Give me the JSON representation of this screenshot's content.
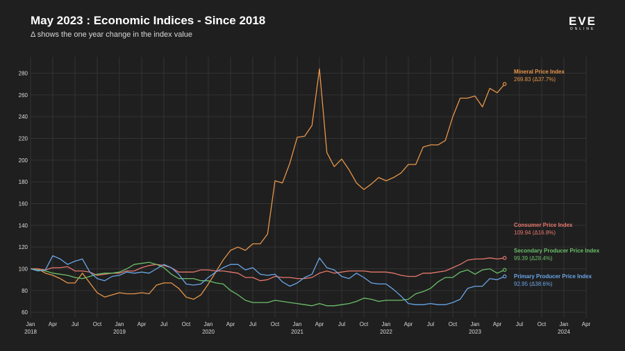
{
  "header": {
    "title": "May 2023 : Economic Indices - Since 2018",
    "subtitle": "Δ shows the one year change in the index value",
    "logo_text": "EVE",
    "logo_subtext": "ONLINE"
  },
  "chart_data": {
    "type": "line",
    "title": "May 2023 : Economic Indices - Since 2018",
    "subtitle": "Δ shows the one year change in the index value",
    "xlabel": "",
    "ylabel": "",
    "x_start": "Jan 2018",
    "x_end": "Apr 2024",
    "ylim": [
      55,
      295
    ],
    "grid": true,
    "legend": "inline-right",
    "y_ticks": [
      60,
      80,
      100,
      120,
      140,
      160,
      180,
      200,
      220,
      240,
      260,
      280
    ],
    "x_ticks": [
      {
        "month": "Jan",
        "year": "2018"
      },
      {
        "month": "Apr",
        "year": ""
      },
      {
        "month": "Jul",
        "year": ""
      },
      {
        "month": "Oct",
        "year": ""
      },
      {
        "month": "Jan",
        "year": "2019"
      },
      {
        "month": "Apr",
        "year": ""
      },
      {
        "month": "Jul",
        "year": ""
      },
      {
        "month": "Oct",
        "year": ""
      },
      {
        "month": "Jan",
        "year": "2020"
      },
      {
        "month": "Apr",
        "year": ""
      },
      {
        "month": "Jul",
        "year": ""
      },
      {
        "month": "Oct",
        "year": ""
      },
      {
        "month": "Jan",
        "year": "2021"
      },
      {
        "month": "Apr",
        "year": ""
      },
      {
        "month": "Jul",
        "year": ""
      },
      {
        "month": "Oct",
        "year": ""
      },
      {
        "month": "Jan",
        "year": "2022"
      },
      {
        "month": "Apr",
        "year": ""
      },
      {
        "month": "Jul",
        "year": ""
      },
      {
        "month": "Oct",
        "year": ""
      },
      {
        "month": "Jan",
        "year": "2023"
      },
      {
        "month": "Apr",
        "year": ""
      },
      {
        "month": "Jul",
        "year": ""
      },
      {
        "month": "Oct",
        "year": ""
      },
      {
        "month": "Jan",
        "year": "2024"
      },
      {
        "month": "Apr",
        "year": ""
      }
    ],
    "series": [
      {
        "name": "Mineral Price Index",
        "value_label": "269.83 (Δ37.7%)",
        "color": "#e8964a",
        "values": [
          100,
          100,
          96,
          94,
          91,
          87,
          87,
          96,
          87,
          78,
          74,
          76,
          78,
          77,
          77,
          78,
          77,
          85,
          87,
          87,
          82,
          74,
          72,
          76,
          86,
          97,
          108,
          117,
          120,
          117,
          123,
          123,
          132,
          181,
          179,
          197,
          221,
          222,
          232,
          284,
          207,
          194,
          201,
          191,
          179,
          173,
          178,
          184,
          181,
          184,
          188,
          196,
          196,
          212,
          214,
          214,
          218,
          240,
          257,
          257,
          259,
          249,
          266,
          262,
          270
        ]
      },
      {
        "name": "Consumer Price Index",
        "value_label": "109.94 (Δ16.8%)",
        "color": "#e8786e",
        "values": [
          100,
          100,
          99,
          101,
          101,
          102,
          98,
          98,
          97,
          94,
          95,
          96,
          96,
          98,
          98,
          101,
          103,
          104,
          103,
          101,
          97,
          97,
          97,
          99,
          99,
          98,
          98,
          97,
          96,
          92,
          92,
          89,
          90,
          93,
          92,
          92,
          91,
          91,
          92,
          96,
          98,
          96,
          97,
          98,
          98,
          98,
          97,
          97,
          97,
          96,
          94,
          93,
          93,
          96,
          96,
          97,
          98,
          101,
          104,
          108,
          109,
          109,
          110,
          109,
          110
        ]
      },
      {
        "name": "Secondary Producer Price Index",
        "value_label": "99.39 (Δ28.4%)",
        "color": "#6cc06a",
        "values": [
          100,
          99,
          98,
          96,
          95,
          94,
          92,
          91,
          93,
          95,
          96,
          96,
          97,
          100,
          104,
          105,
          106,
          104,
          101,
          95,
          91,
          91,
          91,
          89,
          89,
          87,
          86,
          80,
          76,
          71,
          69,
          69,
          69,
          71,
          70,
          69,
          68,
          67,
          66,
          68,
          66,
          66,
          67,
          68,
          70,
          73,
          72,
          70,
          71,
          71,
          71,
          72,
          77,
          79,
          82,
          88,
          92,
          92,
          97,
          99,
          95,
          99,
          100,
          96,
          99
        ]
      },
      {
        "name": "Primary Producer Price Index",
        "value_label": "92.95 (Δ38.6%)",
        "color": "#6aa6e8",
        "values": [
          100,
          98,
          99,
          112,
          109,
          104,
          107,
          109,
          97,
          91,
          89,
          93,
          94,
          97,
          96,
          97,
          96,
          100,
          104,
          101,
          95,
          86,
          85,
          86,
          92,
          97,
          101,
          104,
          104,
          99,
          101,
          95,
          94,
          95,
          88,
          84,
          87,
          92,
          95,
          110,
          101,
          99,
          93,
          91,
          96,
          92,
          87,
          86,
          86,
          81,
          75,
          68,
          67,
          67,
          68,
          67,
          67,
          69,
          72,
          82,
          84,
          84,
          91,
          90,
          93
        ]
      }
    ]
  }
}
